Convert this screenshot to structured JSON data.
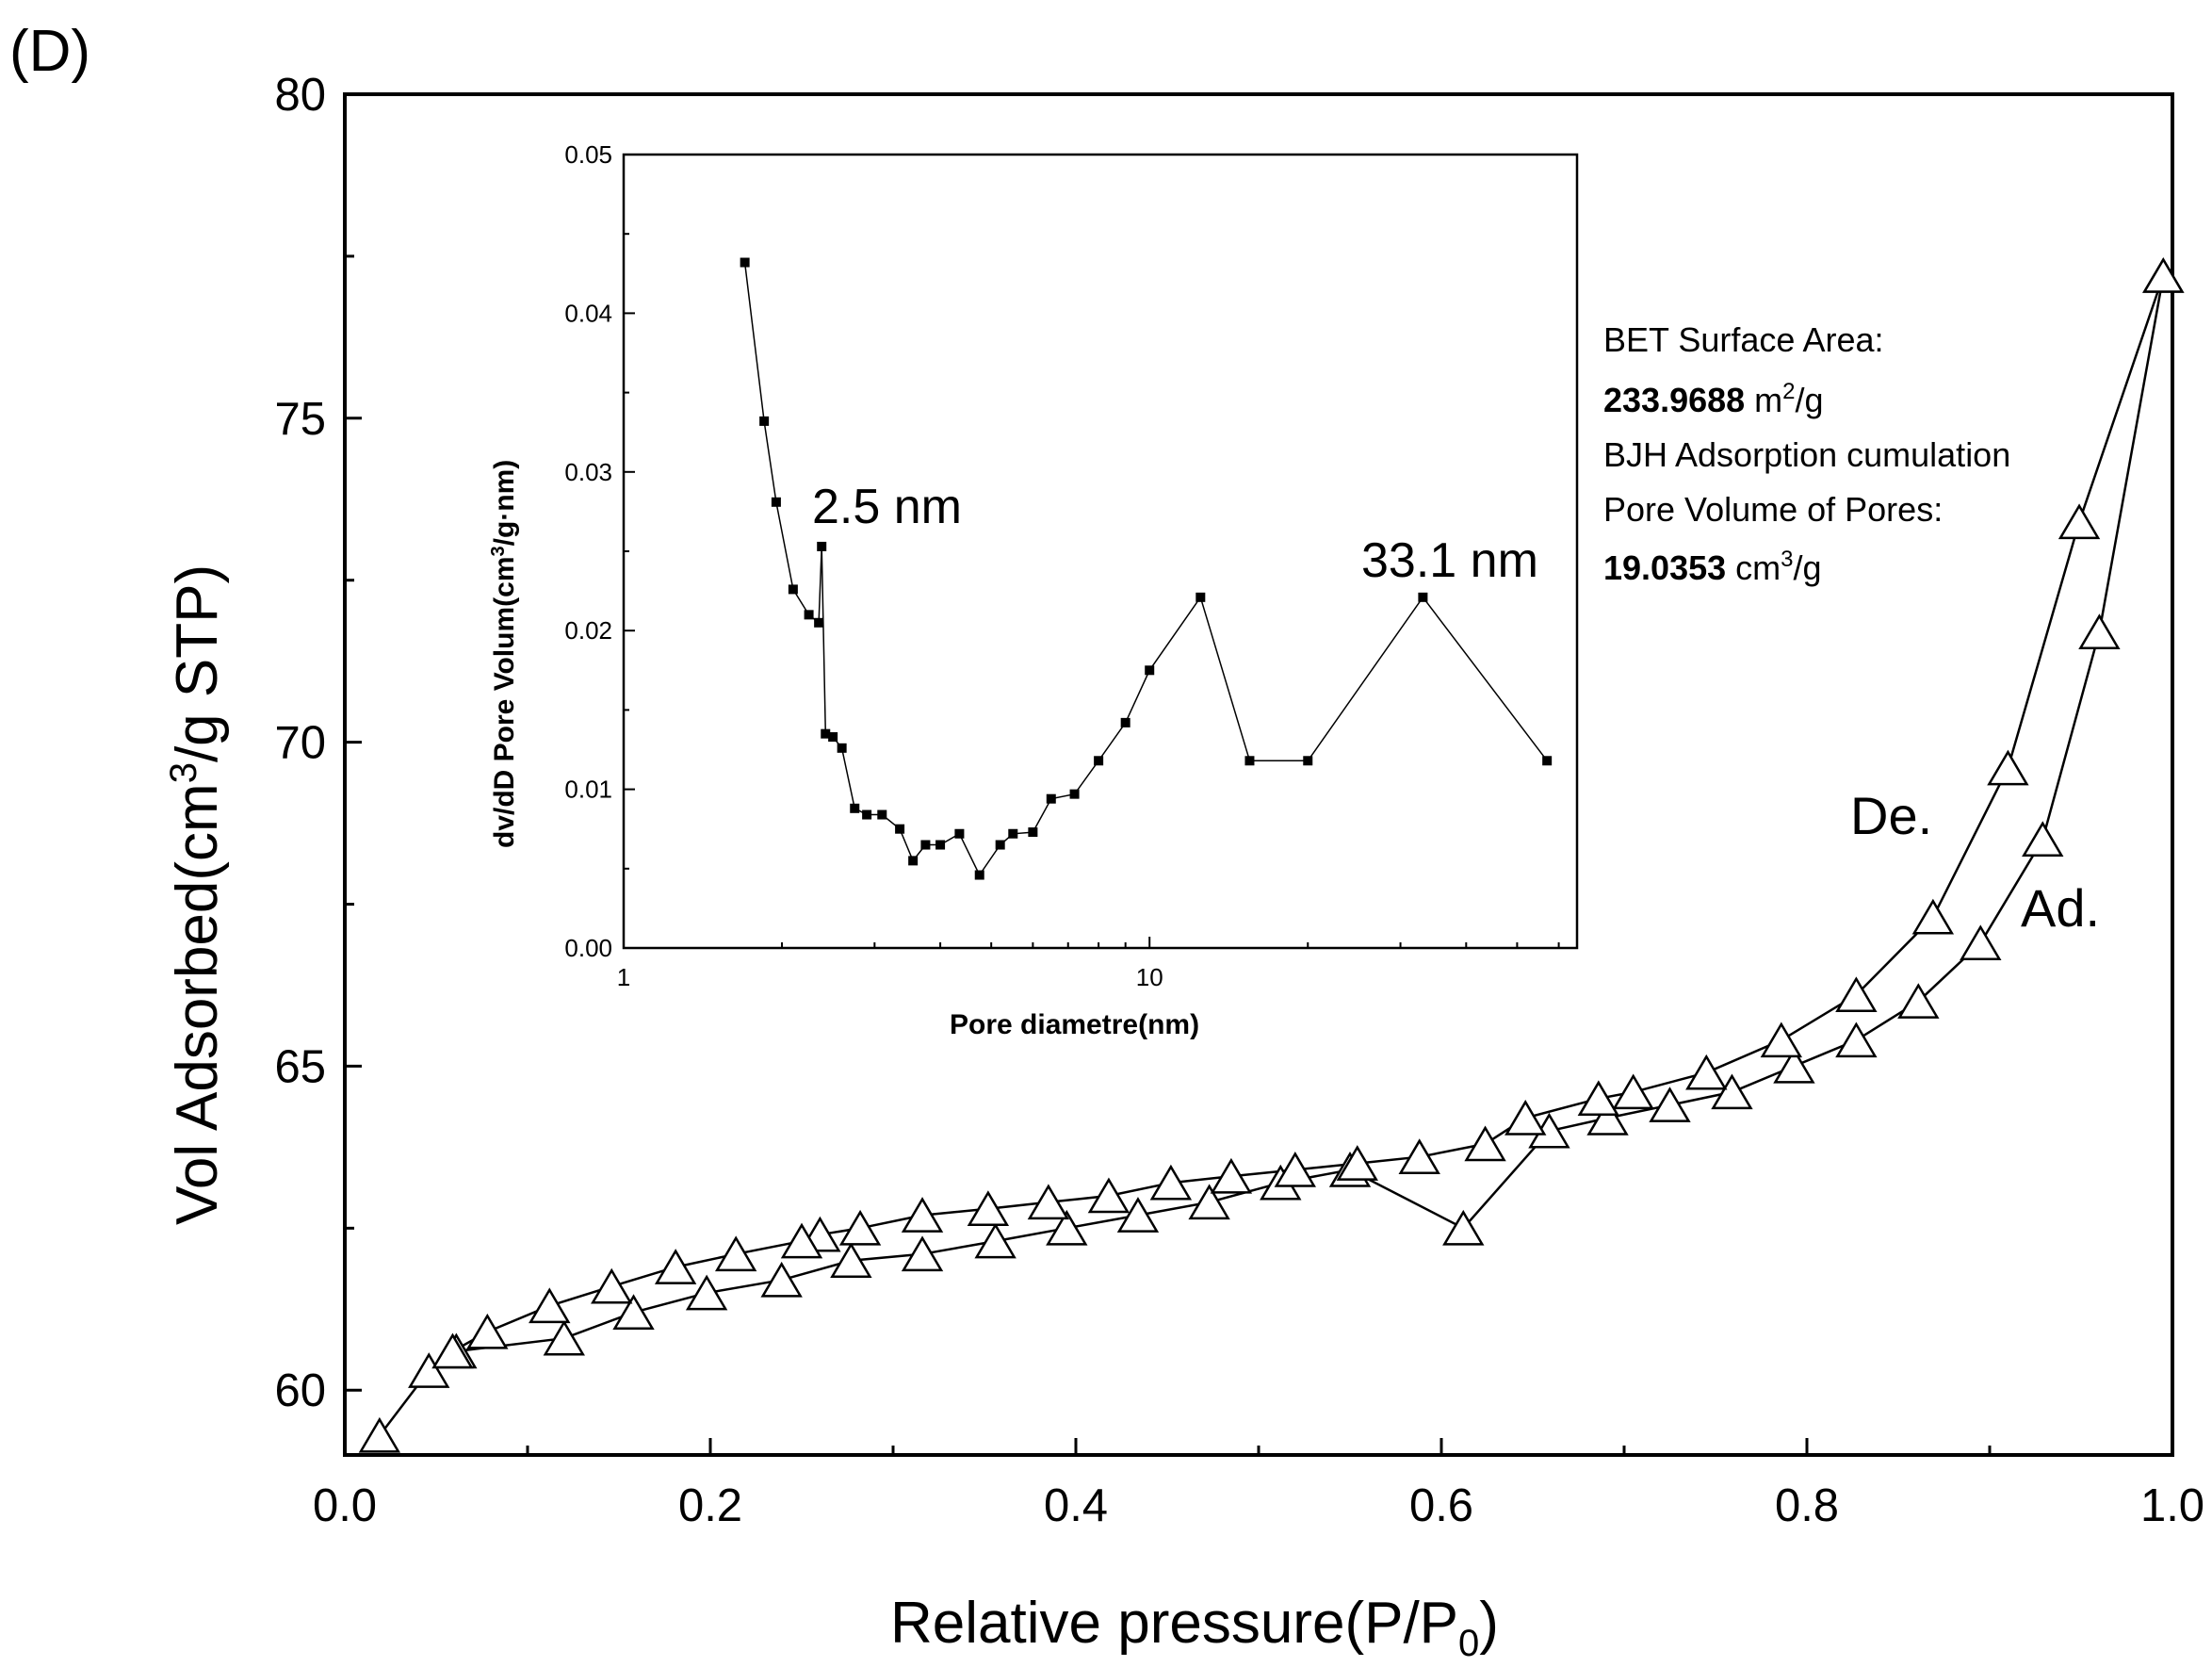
{
  "panel_label": "(D)",
  "colors": {
    "line": "#000000",
    "marker_fill": "#ffffff",
    "background": "#ffffff"
  },
  "annotation": {
    "line1": "BET Surface Area:",
    "line2_bold": "233.9688",
    "line2_unit": " m",
    "line2_sup": "2",
    "line2_rest": "/g",
    "line3": "BJH Adsorption cumulation",
    "line4": "Pore Volume of Pores:",
    "line5_bold": "19.0353",
    "line5_unit": " cm",
    "line5_sup": "3",
    "line5_rest": "/g"
  },
  "chart_data": [
    {
      "type": "line",
      "marker": "open-triangle",
      "title": "",
      "xlabel": "Relative pressure(P/P",
      "xlabel_sub": "0",
      "xlabel_end": ")",
      "ylabel": "Vol Adsorbed(cm",
      "ylabel_sup": "3",
      "ylabel_end": "/g STP)",
      "xlim": [
        0.0,
        1.0
      ],
      "ylim": [
        59.0,
        80.0
      ],
      "x_ticks": [
        "0.0",
        "0.2",
        "0.4",
        "0.6",
        "0.8",
        "1.0"
      ],
      "y_ticks": [
        "60",
        "65",
        "70",
        "75",
        "80"
      ],
      "series": [
        {
          "name": "Ad.",
          "x": [
            0.019,
            0.046,
            0.061,
            0.12,
            0.158,
            0.198,
            0.239,
            0.277,
            0.316,
            0.356,
            0.395,
            0.434,
            0.473,
            0.512,
            0.55,
            0.612,
            0.659,
            0.691,
            0.725,
            0.759,
            0.793,
            0.827,
            0.861,
            0.895,
            0.929,
            0.96,
            0.995
          ],
          "y": [
            59.3,
            60.3,
            60.6,
            60.8,
            61.2,
            61.5,
            61.7,
            62.0,
            62.1,
            62.3,
            62.5,
            62.7,
            62.9,
            63.2,
            63.4,
            62.5,
            64.0,
            64.2,
            64.4,
            64.6,
            65.0,
            65.4,
            66.0,
            66.9,
            68.5,
            71.7,
            77.2
          ]
        },
        {
          "name": "De.",
          "x": [
            0.995,
            0.949,
            0.91,
            0.869,
            0.827,
            0.786,
            0.745,
            0.705,
            0.686,
            0.646,
            0.624,
            0.588,
            0.554,
            0.52,
            0.485,
            0.452,
            0.418,
            0.385,
            0.352,
            0.316,
            0.282,
            0.26,
            0.25,
            0.214,
            0.181,
            0.146,
            0.112,
            0.078,
            0.059
          ],
          "y": [
            77.2,
            73.4,
            69.6,
            67.3,
            66.1,
            65.4,
            64.9,
            64.6,
            64.5,
            64.2,
            63.8,
            63.6,
            63.5,
            63.4,
            63.3,
            63.2,
            63.0,
            62.9,
            62.8,
            62.7,
            62.5,
            62.4,
            62.3,
            62.1,
            61.9,
            61.6,
            61.3,
            60.9,
            60.6
          ]
        }
      ]
    },
    {
      "type": "line",
      "marker": "small-square",
      "title": "",
      "xlabel": "Pore diametre(nm)",
      "ylabel": "dv/dD Pore Volum(cm",
      "ylabel_sup": "3",
      "ylabel_end": "/g·nm)",
      "x_scale": "log",
      "xlim": [
        1,
        65
      ],
      "ylim": [
        0.0,
        0.05
      ],
      "x_ticks": [
        "1",
        "10"
      ],
      "y_ticks": [
        "0.00",
        "0.01",
        "0.02",
        "0.03",
        "0.04",
        "0.05"
      ],
      "annotations": [
        "2.5 nm",
        "33.1 nm"
      ],
      "x": [
        1.7,
        1.85,
        1.95,
        2.1,
        2.25,
        2.35,
        2.38,
        2.42,
        2.5,
        2.6,
        2.75,
        2.9,
        3.1,
        3.35,
        3.55,
        3.75,
        4.0,
        4.35,
        4.75,
        5.2,
        5.5,
        6.0,
        6.5,
        7.2,
        8.0,
        9.0,
        10.0,
        12.5,
        15.5,
        20.0,
        33.1,
        57.0
      ],
      "y": [
        0.0432,
        0.0332,
        0.0281,
        0.0226,
        0.021,
        0.0205,
        0.0253,
        0.0135,
        0.0133,
        0.0126,
        0.0088,
        0.0084,
        0.0084,
        0.0075,
        0.0055,
        0.0065,
        0.0065,
        0.0072,
        0.0046,
        0.0065,
        0.0072,
        0.0073,
        0.0094,
        0.0097,
        0.0118,
        0.0142,
        0.0175,
        0.0221,
        0.0118,
        0.0118,
        0.0221,
        0.0118
      ]
    }
  ]
}
